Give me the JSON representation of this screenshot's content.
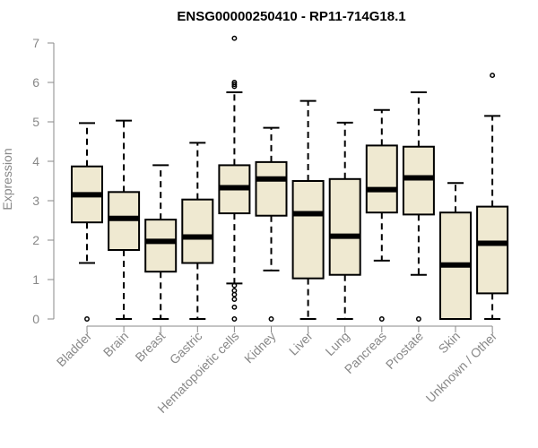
{
  "chart_data": {
    "type": "boxplot",
    "title": "ENSG00000250410 - RP11-714G18.1",
    "xlabel": "",
    "ylabel": "Expression",
    "ylim": [
      0,
      7
    ],
    "yticks": [
      "0",
      "1",
      "2",
      "3",
      "4",
      "5",
      "6",
      "7"
    ],
    "categories": [
      "Bladder",
      "Brain",
      "Breast",
      "Gastric",
      "Hematopoietic cells",
      "Kidney",
      "Liver",
      "Lung",
      "Pancreas",
      "Prostate",
      "Skin",
      "Unknown / Other"
    ],
    "boxes": [
      {
        "category": "Bladder",
        "whisker_low": 1.42,
        "q1": 2.45,
        "median": 3.15,
        "q3": 3.87,
        "whisker_high": 4.97,
        "outliers": [
          0.0
        ]
      },
      {
        "category": "Brain",
        "whisker_low": 0.0,
        "q1": 1.75,
        "median": 2.55,
        "q3": 3.22,
        "whisker_high": 5.03,
        "outliers": []
      },
      {
        "category": "Breast",
        "whisker_low": 0.0,
        "q1": 1.2,
        "median": 1.97,
        "q3": 2.52,
        "whisker_high": 3.9,
        "outliers": []
      },
      {
        "category": "Gastric",
        "whisker_low": 0.0,
        "q1": 1.42,
        "median": 2.08,
        "q3": 3.03,
        "whisker_high": 4.47,
        "outliers": []
      },
      {
        "category": "Hematopoietic cells",
        "whisker_low": 0.9,
        "q1": 2.68,
        "median": 3.33,
        "q3": 3.9,
        "whisker_high": 5.75,
        "outliers": [
          7.12,
          6.0,
          5.95,
          5.9,
          0.85,
          0.72,
          0.62,
          0.5,
          0.3,
          0.0
        ]
      },
      {
        "category": "Kidney",
        "whisker_low": 1.23,
        "q1": 2.62,
        "median": 3.55,
        "q3": 3.98,
        "whisker_high": 4.85,
        "outliers": [
          0.0
        ]
      },
      {
        "category": "Liver",
        "whisker_low": 0.0,
        "q1": 1.03,
        "median": 2.67,
        "q3": 3.5,
        "whisker_high": 5.53,
        "outliers": []
      },
      {
        "category": "Lung",
        "whisker_low": 0.0,
        "q1": 1.12,
        "median": 2.1,
        "q3": 3.55,
        "whisker_high": 4.98,
        "outliers": []
      },
      {
        "category": "Pancreas",
        "whisker_low": 1.48,
        "q1": 2.7,
        "median": 3.28,
        "q3": 4.4,
        "whisker_high": 5.3,
        "outliers": [
          0.0
        ]
      },
      {
        "category": "Prostate",
        "whisker_low": 1.12,
        "q1": 2.65,
        "median": 3.58,
        "q3": 4.37,
        "whisker_high": 5.75,
        "outliers": [
          0.0
        ]
      },
      {
        "category": "Skin",
        "whisker_low": 0.0,
        "q1": 0.0,
        "median": 1.37,
        "q3": 2.7,
        "whisker_high": 3.45,
        "outliers": []
      },
      {
        "category": "Unknown / Other",
        "whisker_low": 0.0,
        "q1": 0.65,
        "median": 1.92,
        "q3": 2.85,
        "whisker_high": 5.15,
        "outliers": [
          6.18
        ]
      }
    ],
    "box_fill": "#efe9d1",
    "box_stroke": "#000000",
    "axis_color": "#888888",
    "grid": false,
    "legend": "none"
  }
}
